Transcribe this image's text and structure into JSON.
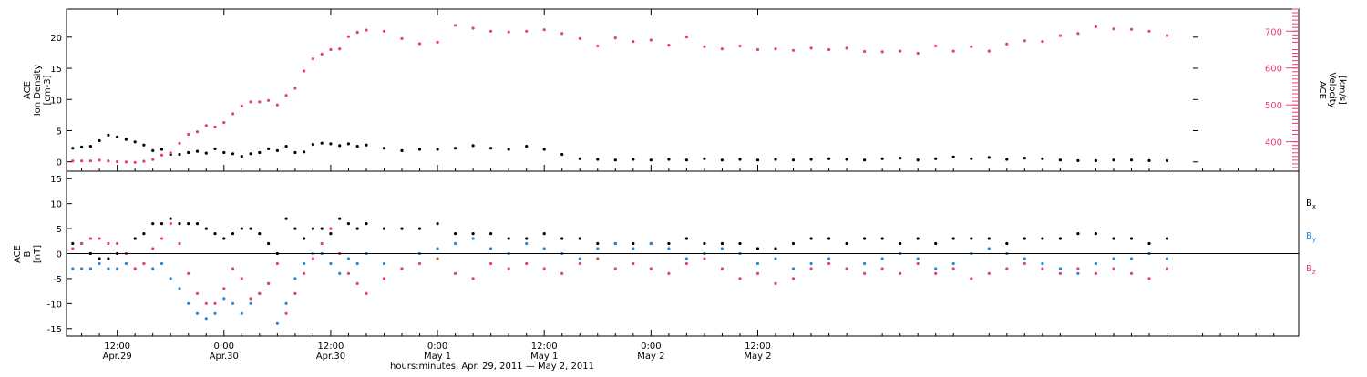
{
  "chart_data": [
    {
      "type": "scatter",
      "panel": "top",
      "title": "",
      "ylabel_left": [
        "ACE",
        "Ion Density",
        "[cm-3]"
      ],
      "ylabel_right": [
        "ACE",
        "Velocity",
        "[km/s]"
      ],
      "ylim_left": [
        -1.5,
        24.5
      ],
      "ylim_right": [
        320,
        760
      ],
      "yticks_left": [
        0,
        5,
        10,
        15,
        20
      ],
      "yticks_right": [
        400,
        500,
        600,
        700
      ],
      "grid": false,
      "legend": "none",
      "series": [
        {
          "name": "Ion Density",
          "axis": "left",
          "color": "#000000",
          "x": [
            7,
            8,
            9,
            10,
            11,
            12,
            13,
            14,
            15,
            16,
            17,
            18,
            19,
            20,
            21,
            22,
            23,
            24,
            25,
            26,
            27,
            28,
            29,
            30,
            31,
            32,
            33,
            34,
            35,
            36,
            37,
            38,
            39,
            40,
            42,
            44,
            46,
            48,
            50,
            52,
            54,
            56,
            58,
            60,
            62,
            64,
            66,
            68,
            70,
            72,
            74,
            76,
            78,
            80,
            82,
            84,
            86,
            88,
            90,
            92,
            94,
            96,
            98,
            100,
            102,
            104,
            106,
            108,
            110,
            112,
            114,
            116,
            118,
            120,
            122,
            124,
            126,
            128,
            130
          ],
          "values": [
            2.2,
            2.4,
            2.5,
            3.4,
            4.3,
            4.0,
            3.6,
            3.2,
            2.7,
            1.8,
            2.0,
            1.2,
            1.2,
            1.5,
            1.7,
            1.4,
            2.1,
            1.5,
            1.3,
            0.9,
            1.3,
            1.5,
            2.1,
            1.8,
            2.5,
            1.5,
            1.6,
            2.8,
            3.0,
            2.9,
            2.6,
            2.9,
            2.5,
            2.7,
            2.2,
            1.8,
            2.0,
            2.0,
            2.2,
            2.6,
            2.2,
            2.0,
            2.5,
            2.0,
            1.2,
            0.5,
            0.4,
            0.3,
            0.4,
            0.3,
            0.4,
            0.3,
            0.5,
            0.3,
            0.4,
            0.3,
            0.4,
            0.3,
            0.4,
            0.5,
            0.4,
            0.3,
            0.5,
            0.6,
            0.3,
            0.5,
            0.8,
            0.5,
            0.7,
            0.4,
            0.6,
            0.5,
            0.3,
            0.2,
            0.2,
            0.3,
            0.3,
            0.2,
            0.2
          ]
        },
        {
          "name": "Velocity",
          "axis": "right",
          "color": "#e8416e",
          "x": [
            7,
            8,
            9,
            10,
            11,
            12,
            13,
            14,
            15,
            16,
            17,
            18,
            19,
            20,
            21,
            22,
            23,
            24,
            25,
            26,
            27,
            28,
            29,
            30,
            31,
            32,
            33,
            34,
            35,
            36,
            37,
            38,
            39,
            40,
            42,
            44,
            46,
            48,
            50,
            52,
            54,
            56,
            58,
            60,
            62,
            64,
            66,
            68,
            70,
            72,
            74,
            76,
            78,
            80,
            82,
            84,
            86,
            88,
            90,
            92,
            94,
            96,
            98,
            100,
            102,
            104,
            106,
            108,
            110,
            112,
            114,
            116,
            118,
            120,
            122,
            124,
            126,
            128,
            130
          ],
          "values": [
            348,
            348,
            348,
            350,
            348,
            346,
            345,
            344,
            347,
            352,
            364,
            370,
            396,
            420,
            427,
            444,
            440,
            452,
            476,
            497,
            508,
            508,
            512,
            500,
            526,
            545,
            592,
            625,
            638,
            650,
            652,
            685,
            697,
            703,
            700,
            680,
            666,
            670,
            716,
            708,
            700,
            698,
            700,
            704,
            694,
            680,
            660,
            682,
            672,
            676,
            662,
            684,
            658,
            652,
            660,
            650,
            652,
            648,
            654,
            650,
            654,
            645,
            644,
            646,
            640,
            660,
            646,
            658,
            646,
            665,
            674,
            672,
            688,
            694,
            712,
            706,
            705,
            700,
            688
          ]
        }
      ]
    },
    {
      "type": "scatter",
      "panel": "bottom",
      "title": "",
      "ylabel": [
        "ACE",
        "B",
        "[nT]"
      ],
      "ylim": [
        -16.5,
        16.5
      ],
      "yticks": [
        -15,
        -10,
        -5,
        0,
        5,
        10,
        15
      ],
      "zero_line": true,
      "grid": false,
      "legend": "right",
      "series": [
        {
          "name": "Bx",
          "color": "#000000",
          "x": [
            7,
            8,
            9,
            10,
            11,
            12,
            13,
            14,
            15,
            16,
            17,
            18,
            19,
            20,
            21,
            22,
            23,
            24,
            25,
            26,
            27,
            28,
            29,
            30,
            31,
            32,
            33,
            34,
            35,
            36,
            37,
            38,
            39,
            40,
            42,
            44,
            46,
            48,
            50,
            52,
            54,
            56,
            58,
            60,
            62,
            64,
            66,
            68,
            70,
            72,
            74,
            76,
            78,
            80,
            82,
            84,
            86,
            88,
            90,
            92,
            94,
            96,
            98,
            100,
            102,
            104,
            106,
            108,
            110,
            112,
            114,
            116,
            118,
            120,
            122,
            124,
            126,
            128,
            130
          ],
          "values": [
            2,
            2,
            0,
            -1,
            -1,
            0,
            0,
            3,
            4,
            6,
            6,
            7,
            6,
            6,
            6,
            5,
            4,
            3,
            4,
            5,
            5,
            4,
            2,
            0,
            7,
            5,
            3,
            5,
            5,
            4,
            7,
            6,
            5,
            6,
            5,
            5,
            5,
            6,
            4,
            4,
            4,
            3,
            3,
            4,
            3,
            3,
            2,
            2,
            2,
            2,
            2,
            3,
            2,
            2,
            2,
            1,
            1,
            2,
            3,
            3,
            2,
            3,
            3,
            2,
            3,
            2,
            3,
            3,
            3,
            2,
            3,
            3,
            3,
            4,
            4,
            3,
            3,
            2,
            3
          ]
        },
        {
          "name": "By",
          "color": "#2a86d8",
          "x": [
            7,
            8,
            9,
            10,
            11,
            12,
            13,
            14,
            15,
            16,
            17,
            18,
            19,
            20,
            21,
            22,
            23,
            24,
            25,
            26,
            27,
            28,
            29,
            30,
            31,
            32,
            33,
            34,
            35,
            36,
            37,
            38,
            39,
            40,
            42,
            44,
            46,
            48,
            50,
            52,
            54,
            56,
            58,
            60,
            62,
            64,
            66,
            68,
            70,
            72,
            74,
            76,
            78,
            80,
            82,
            84,
            86,
            88,
            90,
            92,
            94,
            96,
            98,
            100,
            102,
            104,
            106,
            108,
            110,
            112,
            114,
            116,
            118,
            120,
            122,
            124,
            126,
            128,
            130
          ],
          "values": [
            -3,
            -3,
            -3,
            -2,
            -3,
            -3,
            -2,
            -3,
            -2,
            -3,
            -2,
            -5,
            -7,
            -10,
            -12,
            -13,
            -12,
            -9,
            -10,
            -12,
            -10,
            -8,
            -6,
            -14,
            -10,
            -5,
            -2,
            0,
            0,
            -2,
            -4,
            -1,
            -2,
            0,
            -2,
            -3,
            0,
            1,
            2,
            3,
            1,
            0,
            2,
            1,
            0,
            -1,
            1,
            2,
            1,
            2,
            1,
            -1,
            0,
            1,
            0,
            -2,
            -1,
            -3,
            -2,
            -1,
            -3,
            -2,
            -1,
            0,
            -1,
            -3,
            -2,
            0,
            1,
            0,
            -1,
            -2,
            -3,
            -4,
            -2,
            -1,
            -1,
            0,
            -1
          ]
        },
        {
          "name": "Bz",
          "color": "#e8416e",
          "x": [
            7,
            8,
            9,
            10,
            11,
            12,
            13,
            14,
            15,
            16,
            17,
            18,
            19,
            20,
            21,
            22,
            23,
            24,
            25,
            26,
            27,
            28,
            29,
            30,
            31,
            32,
            33,
            34,
            35,
            36,
            37,
            38,
            39,
            40,
            42,
            44,
            46,
            48,
            50,
            52,
            54,
            56,
            58,
            60,
            62,
            64,
            66,
            68,
            70,
            72,
            74,
            76,
            78,
            80,
            82,
            84,
            86,
            88,
            90,
            92,
            94,
            96,
            98,
            100,
            102,
            104,
            106,
            108,
            110,
            112,
            114,
            116,
            118,
            120,
            122,
            124,
            126,
            128,
            130
          ],
          "values": [
            1,
            2,
            3,
            3,
            2,
            2,
            0,
            -3,
            -2,
            1,
            3,
            6,
            2,
            -4,
            -8,
            -10,
            -10,
            -7,
            -3,
            -5,
            -9,
            -8,
            -6,
            -2,
            -12,
            -8,
            -4,
            -1,
            2,
            5,
            0,
            -4,
            -6,
            -8,
            -5,
            -3,
            -2,
            -1,
            -4,
            -5,
            -2,
            -3,
            -2,
            -3,
            -4,
            -2,
            -1,
            -3,
            -2,
            -3,
            -4,
            -2,
            -1,
            -3,
            -5,
            -4,
            -6,
            -5,
            -3,
            -2,
            -3,
            -4,
            -3,
            -4,
            -2,
            -4,
            -3,
            -5,
            -4,
            -3,
            -2,
            -3,
            -4,
            -3,
            -4,
            -3,
            -4,
            -5,
            -3
          ]
        }
      ]
    }
  ],
  "shared_x": {
    "xlim": [
      6.3,
      144.8
    ],
    "ticks": [
      {
        "value": 12,
        "time": "12:00",
        "date": "Apr.29"
      },
      {
        "value": 24,
        "time": "0:00",
        "date": "Apr.30"
      },
      {
        "value": 36,
        "time": "12:00",
        "date": "Apr.30"
      },
      {
        "value": 48,
        "time": "0:00",
        "date": "May 1"
      },
      {
        "value": 60,
        "time": "12:00",
        "date": "May 1"
      },
      {
        "value": 72,
        "time": "0:00",
        "date": "May 2"
      },
      {
        "value": 84,
        "time": "12:00",
        "date": "May 2"
      }
    ],
    "xlabel": "hours:minutes, Apr. 29, 2011 — May  2, 2011"
  },
  "legend_labels": {
    "bx": "B",
    "bx_sub": "x",
    "by": "B",
    "by_sub": "y",
    "bz": "B",
    "bz_sub": "z"
  }
}
